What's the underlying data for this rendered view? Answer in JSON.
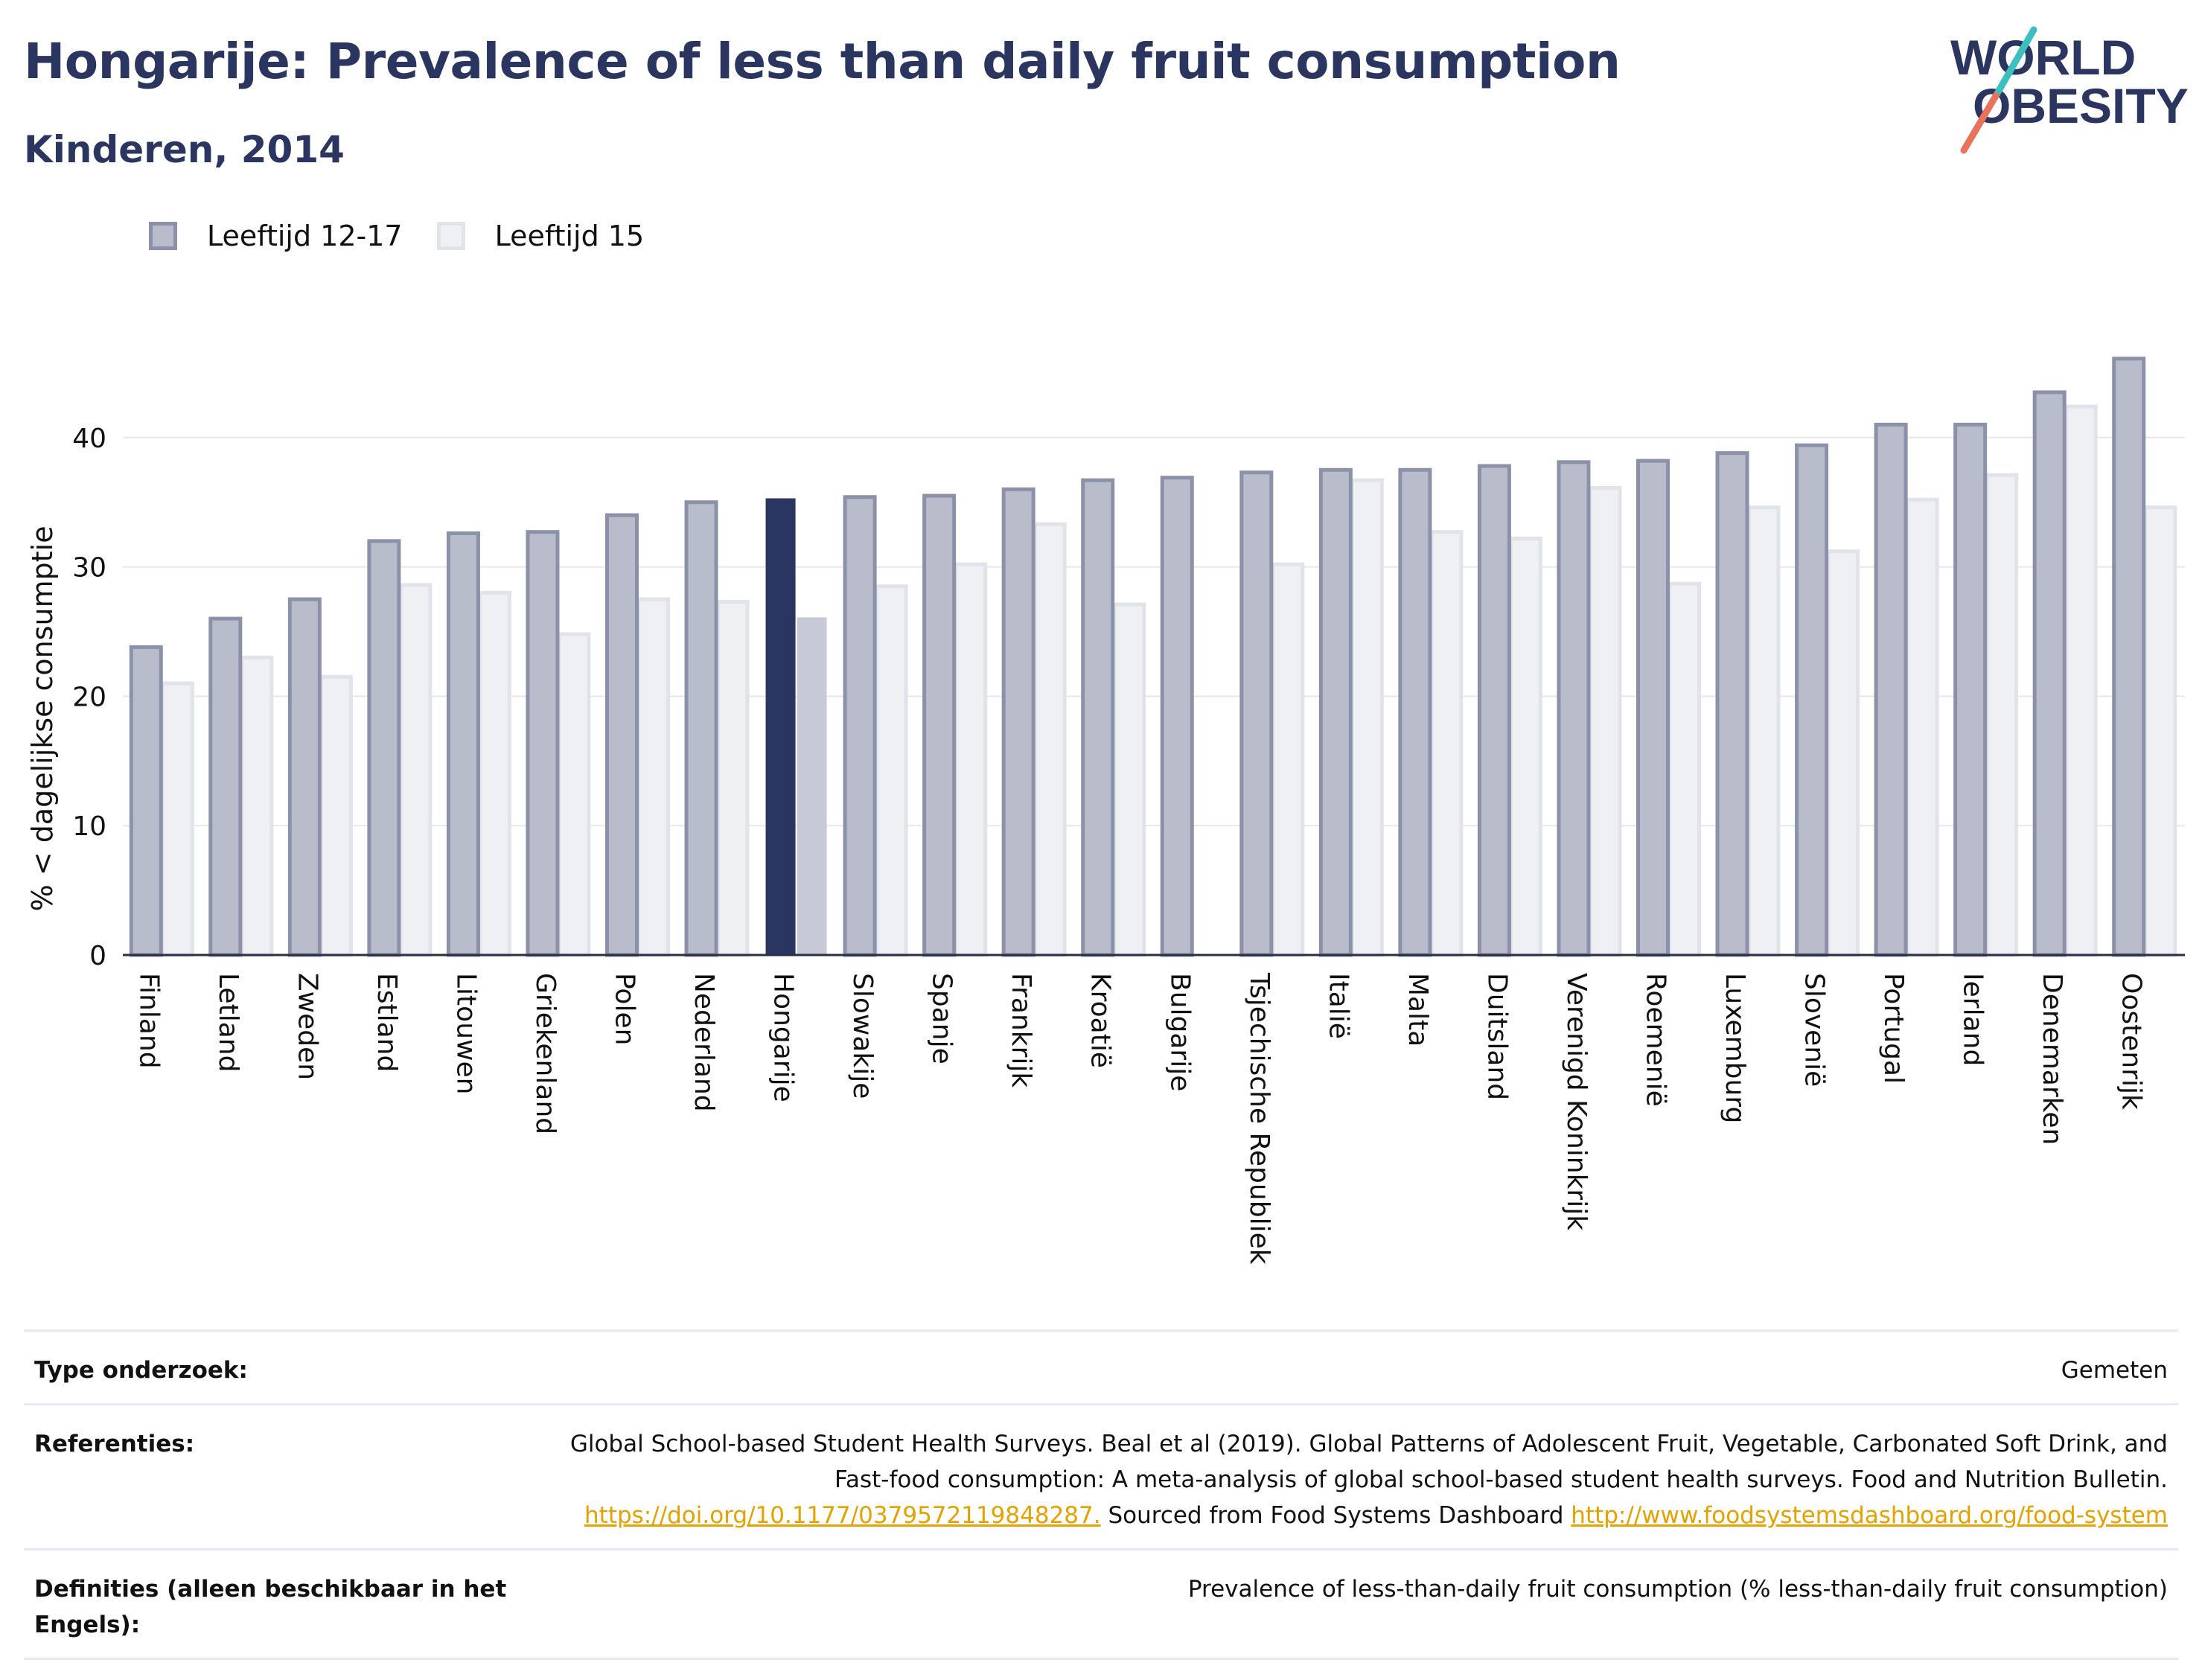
{
  "header": {
    "title": "Hongarije: Prevalence of less than daily fruit consumption",
    "subtitle": "Kinderen, 2014"
  },
  "logo": {
    "line1": "WORLD",
    "line2": "OBESITY"
  },
  "legend": [
    {
      "label": "Leeftijd 12-17",
      "color": "#b9bcca"
    },
    {
      "label": "Leeftijd 15",
      "color": "#eef0f4"
    }
  ],
  "chart_data": {
    "type": "bar",
    "ylabel": "% < dagelijkse consumptie",
    "ylim": [
      0,
      50
    ],
    "yticks": [
      0,
      10,
      20,
      30,
      40
    ],
    "grid": true,
    "highlight": "Hongarije",
    "colors": {
      "dark_fill": "#b9bcca",
      "dark_stroke": "#8b91a8",
      "light_fill": "#eef0f4",
      "light_stroke": "#e1e3ea",
      "highlight_dark": "#2a3560",
      "highlight_light": "#c7c9d6"
    },
    "categories": [
      "Finland",
      "Letland",
      "Zweden",
      "Estland",
      "Litouwen",
      "Griekenland",
      "Polen",
      "Nederland",
      "Hongarije",
      "Slowakije",
      "Spanje",
      "Frankrijk",
      "Kroatië",
      "Bulgarije",
      "Tsjechische Republiek",
      "Italië",
      "Malta",
      "Duitsland",
      "Verenigd Koninkrijk",
      "Roemenië",
      "Luxemburg",
      "Slovenië",
      "Portugal",
      "Ierland",
      "Denemarken",
      "Oostenrijk"
    ],
    "series": [
      {
        "name": "Leeftijd 12-17",
        "values": [
          23.8,
          26.0,
          27.5,
          32.0,
          32.6,
          32.7,
          34.0,
          35.0,
          35.3,
          35.4,
          35.5,
          36.0,
          36.7,
          36.9,
          37.3,
          37.5,
          37.5,
          37.8,
          38.1,
          38.2,
          38.8,
          39.4,
          41.0,
          41.0,
          43.5,
          46.1
        ]
      },
      {
        "name": "Leeftijd 15",
        "values": [
          21.0,
          23.0,
          21.5,
          28.6,
          28.0,
          24.8,
          27.5,
          27.3,
          26.1,
          28.5,
          30.2,
          33.3,
          27.1,
          null,
          30.2,
          36.7,
          32.7,
          32.2,
          36.1,
          28.7,
          34.6,
          31.2,
          35.2,
          37.1,
          42.4,
          34.6
        ]
      }
    ]
  },
  "info": {
    "rows": [
      {
        "label": "Type onderzoek:",
        "value": "Gemeten"
      },
      {
        "label": "Referenties:",
        "value": "Global School-based Student Health Surveys. Beal et al (2019). Global Patterns of Adolescent Fruit, Vegetable, Carbonated Soft Drink, and Fast-food consumption: A meta-analysis of global school-based student health surveys. Food and Nutrition Bulletin. ",
        "link1": "https://doi.org/10.1177/0379572119848287.",
        "middle": " Sourced from Food Systems Dashboard ",
        "link2": "http://www.foodsystemsdashboard.org/food-system"
      },
      {
        "label": "Definities (alleen beschikbaar in het Engels):",
        "value": "Prevalence of less-than-daily fruit consumption (% less-than-daily fruit consumption)"
      }
    ]
  }
}
